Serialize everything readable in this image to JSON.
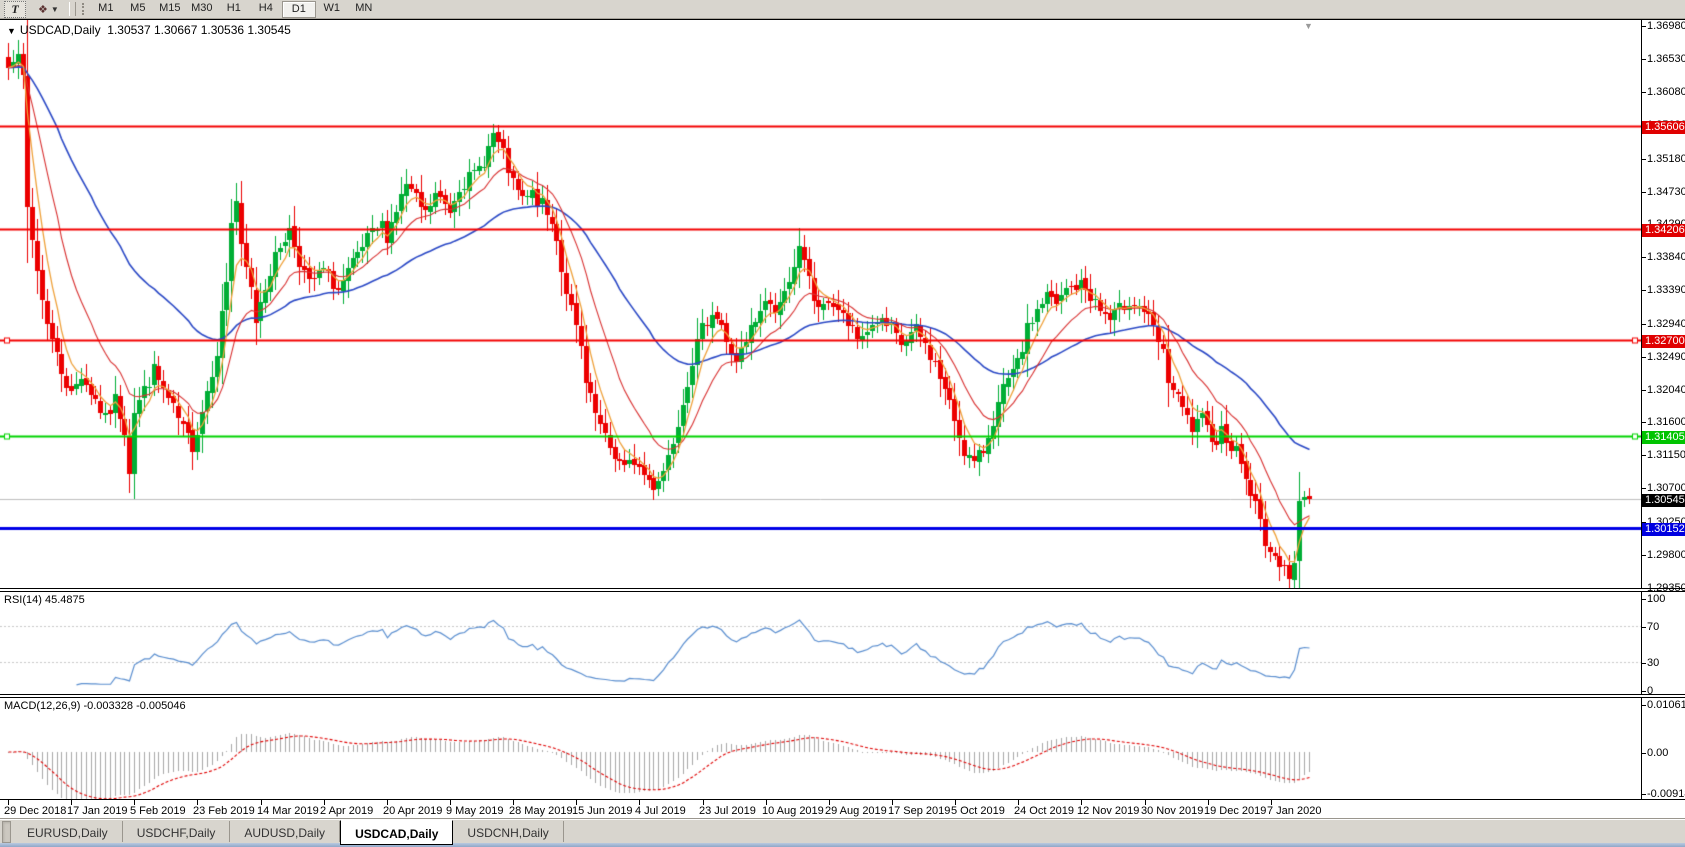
{
  "toolbar": {
    "text_tool_label": "T",
    "timeframes": [
      "M1",
      "M5",
      "M15",
      "M30",
      "H1",
      "H4",
      "D1",
      "W1",
      "MN"
    ],
    "active_timeframe": "D1"
  },
  "icons": {
    "symbol_dropdown": "▼",
    "arrange_glyph": "❖",
    "arrange_dropdown": "▼",
    "shift_marker": "▼"
  },
  "chart": {
    "title": "USDCAD,Daily",
    "ohlc": "1.30537 1.30667 1.30536 1.30545"
  },
  "indicators": {
    "rsi_label": "RSI(14) 45.4875",
    "macd_label": "MACD(12,26,9) -0.003328 -0.005046"
  },
  "axes": {
    "price_ticks": [
      "1.36980",
      "1.36530",
      "1.36080",
      "1.35630",
      "1.35180",
      "1.34730",
      "1.34290",
      "1.33840",
      "1.33390",
      "1.32940",
      "1.32490",
      "1.32040",
      "1.31600",
      "1.31150",
      "1.30700",
      "1.30250",
      "1.29800",
      "1.29350"
    ],
    "rsi_ticks": [
      "100",
      "70",
      "30",
      "0"
    ],
    "macd_ticks": [
      "0.010615",
      "0.00",
      "-0.009181"
    ],
    "dates": [
      "29 Dec 2018",
      "17 Jan 2019",
      "5 Feb 2019",
      "23 Feb 2019",
      "14 Mar 2019",
      "2 Apr 2019",
      "20 Apr 2019",
      "9 May 2019",
      "28 May 2019",
      "15 Jun 2019",
      "4 Jul 2019",
      "23 Jul 2019",
      "10 Aug 2019",
      "29 Aug 2019",
      "17 Sep 2019",
      "5 Oct 2019",
      "24 Oct 2019",
      "12 Nov 2019",
      "30 Nov 2019",
      "19 Dec 2019",
      "7 Jan 2020"
    ]
  },
  "hlines": [
    {
      "label": "1.35606",
      "value": 1.35606,
      "color": "#F40000",
      "label_bg": "#E00000",
      "width": 2,
      "handles": false
    },
    {
      "label": "1.34206",
      "value": 1.34206,
      "color": "#F40000",
      "label_bg": "#E00000",
      "width": 2,
      "handles": false
    },
    {
      "label": "1.32700",
      "value": 1.327,
      "color": "#F40000",
      "label_bg": "#E00000",
      "width": 2,
      "handles": true
    },
    {
      "label": "1.31405",
      "value": 1.31405,
      "color": "#00D400",
      "label_bg": "#00C400",
      "width": 2,
      "handles": true
    },
    {
      "label": "1.30545",
      "value": 1.30545,
      "color": "#BEBEBE",
      "label_bg": "#000000",
      "width": 1,
      "handles": false
    },
    {
      "label": "1.30152",
      "value": 1.30152,
      "color": "#0000E8",
      "label_bg": "#0000E0",
      "width": 3,
      "handles": false
    }
  ],
  "tabs": {
    "items": [
      "EURUSD,Daily",
      "USDCHF,Daily",
      "AUDUSD,Daily",
      "USDCAD,Daily",
      "USDCNH,Daily"
    ],
    "active": "USDCAD,Daily"
  },
  "colors": {
    "candle_up": "#00AE35",
    "candle_down": "#EC0000",
    "ma_fast": "#EFA13A",
    "ma_medium": "#D93030",
    "ma_slow": "#2B49C6",
    "rsi_line": "#5B8FD0",
    "rsi_levels": "#C8C8C8",
    "macd_hist": "#A8A8A8",
    "macd_signal": "#E00000",
    "panel_bg": "#FFFFFF",
    "workspace": "#D8D5CE"
  },
  "chart_data": {
    "type": "candlestick+indicators",
    "symbol": "USDCAD",
    "period": "Daily",
    "bars": 269,
    "seed": 7,
    "last_close": 1.30545,
    "price_range": {
      "top": 1.37048,
      "bottom": 1.29335
    },
    "close_anchors": [
      [
        0,
        1.364
      ],
      [
        1,
        1.3657
      ],
      [
        2,
        1.3667
      ],
      [
        3,
        1.362
      ],
      [
        4,
        1.3447
      ],
      [
        5,
        1.3406
      ],
      [
        7,
        1.3325
      ],
      [
        9,
        1.327
      ],
      [
        11,
        1.3229
      ],
      [
        13,
        1.3196
      ],
      [
        15,
        1.3223
      ],
      [
        18,
        1.3189
      ],
      [
        20,
        1.3162
      ],
      [
        22,
        1.3189
      ],
      [
        24,
        1.3148
      ],
      [
        25,
        1.3095
      ],
      [
        26,
        1.3175
      ],
      [
        28,
        1.3202
      ],
      [
        30,
        1.3229
      ],
      [
        32,
        1.3202
      ],
      [
        34,
        1.3175
      ],
      [
        36,
        1.3148
      ],
      [
        38,
        1.3128
      ],
      [
        39,
        1.3148
      ],
      [
        41,
        1.3202
      ],
      [
        43,
        1.3257
      ],
      [
        45,
        1.3352
      ],
      [
        46,
        1.343
      ],
      [
        47,
        1.346
      ],
      [
        48,
        1.3392
      ],
      [
        50,
        1.3338
      ],
      [
        51,
        1.3297
      ],
      [
        52,
        1.3325
      ],
      [
        54,
        1.3365
      ],
      [
        56,
        1.3399
      ],
      [
        58,
        1.342
      ],
      [
        60,
        1.3379
      ],
      [
        62,
        1.3345
      ],
      [
        65,
        1.3365
      ],
      [
        68,
        1.3338
      ],
      [
        71,
        1.3372
      ],
      [
        74,
        1.3406
      ],
      [
        77,
        1.3426
      ],
      [
        78,
        1.3412
      ],
      [
        80,
        1.3447
      ],
      [
        82,
        1.3481
      ],
      [
        84,
        1.346
      ],
      [
        86,
        1.344
      ],
      [
        88,
        1.3467
      ],
      [
        91,
        1.3447
      ],
      [
        93,
        1.3481
      ],
      [
        96,
        1.3494
      ],
      [
        98,
        1.3515
      ],
      [
        100,
        1.3549
      ],
      [
        102,
        1.3521
      ],
      [
        104,
        1.3481
      ],
      [
        106,
        1.346
      ],
      [
        108,
        1.3467
      ],
      [
        110,
        1.3453
      ],
      [
        111,
        1.344
      ],
      [
        113,
        1.3412
      ],
      [
        114,
        1.3365
      ],
      [
        116,
        1.3311
      ],
      [
        118,
        1.3257
      ],
      [
        119,
        1.3209
      ],
      [
        121,
        1.3169
      ],
      [
        123,
        1.3135
      ],
      [
        125,
        1.3114
      ],
      [
        127,
        1.3094
      ],
      [
        129,
        1.3107
      ],
      [
        131,
        1.3087
      ],
      [
        133,
        1.3073
      ],
      [
        135,
        1.3094
      ],
      [
        137,
        1.3135
      ],
      [
        139,
        1.3189
      ],
      [
        141,
        1.3243
      ],
      [
        143,
        1.3284
      ],
      [
        145,
        1.3311
      ],
      [
        147,
        1.3291
      ],
      [
        148,
        1.3263
      ],
      [
        150,
        1.3243
      ],
      [
        152,
        1.3263
      ],
      [
        153,
        1.3284
      ],
      [
        155,
        1.3304
      ],
      [
        156,
        1.3325
      ],
      [
        158,
        1.3311
      ],
      [
        160,
        1.3331
      ],
      [
        161,
        1.3358
      ],
      [
        163,
        1.3392
      ],
      [
        165,
        1.3352
      ],
      [
        166,
        1.3325
      ],
      [
        168,
        1.3311
      ],
      [
        169,
        1.3325
      ],
      [
        171,
        1.3311
      ],
      [
        173,
        1.3291
      ],
      [
        175,
        1.327
      ],
      [
        177,
        1.3284
      ],
      [
        179,
        1.3297
      ],
      [
        182,
        1.3284
      ],
      [
        184,
        1.3263
      ],
      [
        187,
        1.3284
      ],
      [
        189,
        1.3263
      ],
      [
        191,
        1.3236
      ],
      [
        193,
        1.3202
      ],
      [
        195,
        1.3162
      ],
      [
        197,
        1.3121
      ],
      [
        199,
        1.3101
      ],
      [
        201,
        1.3121
      ],
      [
        203,
        1.3162
      ],
      [
        205,
        1.3202
      ],
      [
        208,
        1.3236
      ],
      [
        210,
        1.3284
      ],
      [
        212,
        1.3311
      ],
      [
        214,
        1.3331
      ],
      [
        216,
        1.3317
      ],
      [
        218,
        1.3338
      ],
      [
        221,
        1.3345
      ],
      [
        223,
        1.3331
      ],
      [
        225,
        1.3311
      ],
      [
        227,
        1.3297
      ],
      [
        229,
        1.3311
      ],
      [
        231,
        1.3325
      ],
      [
        234,
        1.3311
      ],
      [
        236,
        1.3284
      ],
      [
        238,
        1.325
      ],
      [
        239,
        1.3216
      ],
      [
        241,
        1.3189
      ],
      [
        243,
        1.3162
      ],
      [
        244,
        1.3148
      ],
      [
        246,
        1.3162
      ],
      [
        247,
        1.3148
      ],
      [
        249,
        1.3135
      ],
      [
        250,
        1.3148
      ],
      [
        252,
        1.3128
      ],
      [
        254,
        1.3107
      ],
      [
        255,
        1.308
      ],
      [
        257,
        1.3046
      ],
      [
        259,
        1.2999
      ],
      [
        261,
        1.2968
      ],
      [
        263,
        1.2972
      ],
      [
        264,
        1.2948
      ],
      [
        265,
        1.2962
      ],
      [
        266,
        1.3048
      ],
      [
        267,
        1.3062
      ],
      [
        268,
        1.30545
      ]
    ],
    "ma": {
      "fast_period": 5,
      "medium_period": 14,
      "slow_period": 45
    },
    "rsi": {
      "period": 14,
      "levels": [
        70,
        30
      ],
      "current": "45.4875"
    },
    "macd": {
      "fast": 12,
      "slow": 26,
      "signal": 9,
      "range": {
        "max": 0.010615,
        "min": -0.009181
      },
      "current": "-0.003328",
      "current_signal": "-0.005046"
    }
  }
}
